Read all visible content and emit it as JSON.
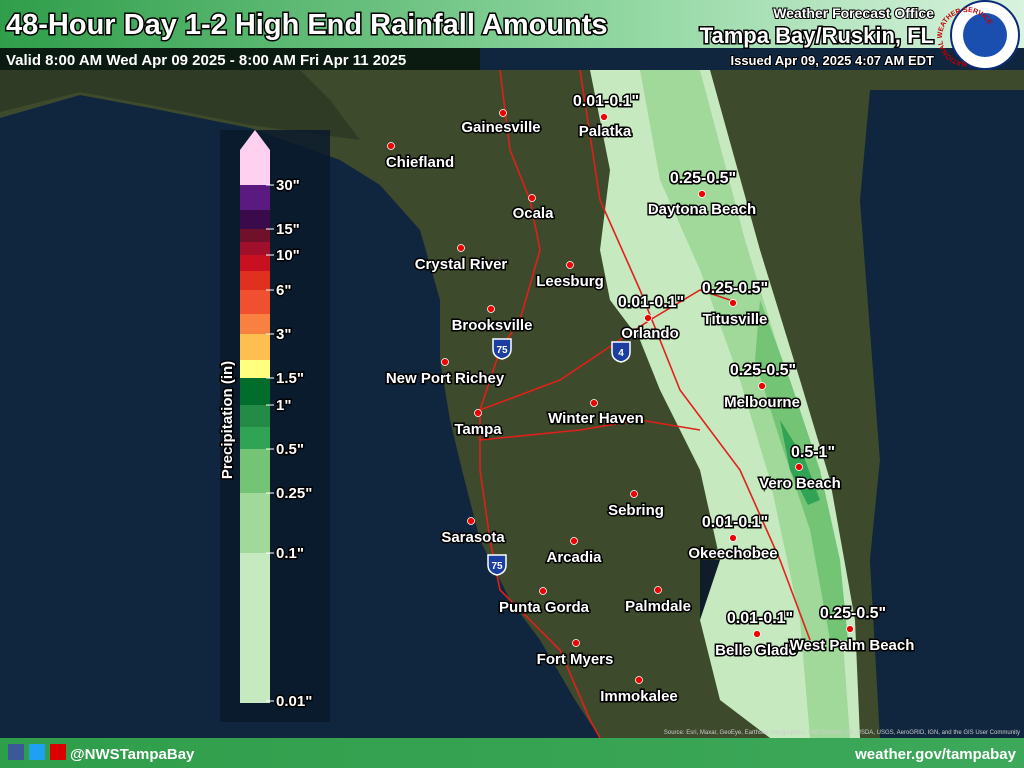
{
  "header": {
    "title": "48-Hour Day 1-2 High End Rainfall Amounts",
    "valid": "Valid 8:00 AM Wed Apr 09 2025 - 8:00 AM Fri Apr 11 2025",
    "office_label": "Weather Forecast Office",
    "office": "Tampa Bay/Ruskin, FL",
    "issued": "Issued Apr 09, 2025 4:07 AM EDT",
    "logo_text": "NATIONAL WEATHER SERVICE"
  },
  "legend": {
    "title": "Precipitation (in)",
    "labels": [
      "30\"",
      "15\"",
      "10\"",
      "6\"",
      "3\"",
      "1.5\"",
      "1\"",
      "0.5\"",
      "0.25\"",
      "0.1\"",
      "0.01\""
    ]
  },
  "cities": [
    "Gainesville",
    "Palatka",
    "Chiefland",
    "Ocala",
    "Crystal River",
    "Leesburg",
    "Orlando",
    "Brooksville",
    "Titusville",
    "New Port Richey",
    "Melbourne",
    "Winter Haven",
    "Tampa",
    "Daytona Beach",
    "Vero Beach",
    "Sebring",
    "Okeechobee",
    "Sarasota",
    "Arcadia",
    "Punta Gorda",
    "Palmdale",
    "Fort Myers",
    "Belle Glade",
    "West Palm Beach",
    "Immokalee"
  ],
  "amounts": [
    "0.01-0.1\"",
    "0.25-0.5\"",
    "0.01-0.1\"",
    "0.25-0.5\"",
    "0.25-0.5\"",
    "0.5-1\"",
    "0.01-0.1\"",
    "0.01-0.1\"",
    "0.25-0.5\""
  ],
  "highways": [
    "75",
    "75",
    "4"
  ],
  "source": "Source: Esri, Maxar, GeoEye, Earthstar Geographics, CNES/Airbus DS, USDA, USGS, AeroGRID, IGN, and the GIS User Community",
  "footer": {
    "social": "@NWSTampaBay",
    "url": "weather.gov/tampabay"
  }
}
